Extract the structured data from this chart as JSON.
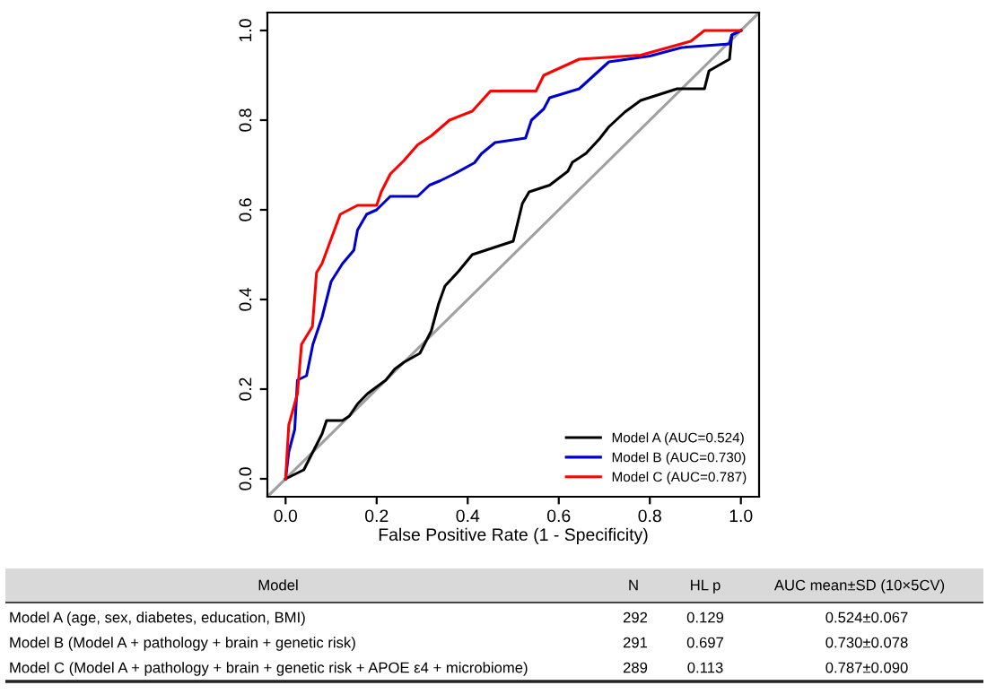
{
  "chart_data": [
    {
      "type": "line",
      "xlabel": "False Positive Rate (1 - Specificity)",
      "xlim": [
        -0.04,
        1.04
      ],
      "ylim": [
        -0.04,
        1.04
      ],
      "xticks": [
        {
          "value": 0,
          "label": "0.0"
        },
        0.2,
        0.4,
        0.6,
        0.8,
        {
          "value": 1,
          "label": "1.0"
        }
      ],
      "yticks": [
        {
          "value": 0,
          "label": "0.0"
        },
        0.2,
        0.4,
        0.6,
        0.8,
        {
          "value": 1,
          "label": "1.0"
        }
      ],
      "grid": false,
      "legend": "bottom right",
      "marker": "none",
      "line_style": "solid",
      "series": [
        {
          "color": "#a0a0a0",
          "x": [
            -0.04,
            1.04
          ],
          "values": [
            -0.04,
            1.04
          ]
        },
        {
          "name": "Model A (AUC=0.524)",
          "color": "#000000",
          "x": [
            0,
            0.02,
            0.04,
            0.06,
            0.08,
            0.09,
            0.125,
            0.14,
            0.158,
            0.18,
            0.22,
            0.24,
            0.26,
            0.295,
            0.32,
            0.336,
            0.35,
            0.38,
            0.41,
            0.5,
            0.52,
            0.535,
            0.58,
            0.62,
            0.63,
            0.66,
            0.69,
            0.71,
            0.745,
            0.78,
            0.82,
            0.86,
            0.92,
            0.93,
            0.975,
            0.98,
            1
          ],
          "values": [
            0,
            0.01,
            0.02,
            0.06,
            0.1,
            0.13,
            0.13,
            0.14,
            0.167,
            0.19,
            0.22,
            0.245,
            0.26,
            0.28,
            0.33,
            0.39,
            0.43,
            0.463,
            0.5,
            0.53,
            0.614,
            0.64,
            0.655,
            0.686,
            0.706,
            0.726,
            0.759,
            0.785,
            0.818,
            0.844,
            0.857,
            0.87,
            0.87,
            0.91,
            0.936,
            0.99,
            1
          ]
        },
        {
          "name": "Model B (AUC=0.730)",
          "color": "#0000cc",
          "x": [
            0,
            0.007,
            0.02,
            0.026,
            0.046,
            0.06,
            0.08,
            0.1,
            0.125,
            0.15,
            0.158,
            0.178,
            0.2,
            0.23,
            0.29,
            0.316,
            0.34,
            0.37,
            0.415,
            0.43,
            0.46,
            0.527,
            0.54,
            0.567,
            0.58,
            0.645,
            0.71,
            0.8,
            0.87,
            0.975,
            0.98,
            1
          ],
          "values": [
            0,
            0.06,
            0.11,
            0.22,
            0.23,
            0.3,
            0.36,
            0.44,
            0.48,
            0.51,
            0.555,
            0.59,
            0.6,
            0.63,
            0.63,
            0.655,
            0.665,
            0.68,
            0.705,
            0.725,
            0.75,
            0.76,
            0.8,
            0.825,
            0.85,
            0.87,
            0.93,
            0.943,
            0.962,
            0.97,
            0.99,
            1
          ]
        },
        {
          "name": "Model C (AUC=0.787)",
          "color": "#ff0000",
          "x": [
            0,
            0.007,
            0.026,
            0.035,
            0.059,
            0.068,
            0.08,
            0.1,
            0.12,
            0.158,
            0.2,
            0.21,
            0.23,
            0.26,
            0.29,
            0.32,
            0.36,
            0.41,
            0.45,
            0.55,
            0.567,
            0.645,
            0.78,
            0.89,
            0.92,
            1
          ],
          "values": [
            0,
            0.12,
            0.19,
            0.3,
            0.34,
            0.46,
            0.48,
            0.535,
            0.59,
            0.61,
            0.61,
            0.64,
            0.68,
            0.71,
            0.745,
            0.765,
            0.8,
            0.82,
            0.865,
            0.865,
            0.9,
            0.936,
            0.945,
            0.976,
            1,
            1
          ]
        }
      ]
    },
    {
      "type": "other",
      "categories": [
        "Model",
        "N",
        "HL p",
        "AUC mean±SD (10×5CV)"
      ],
      "cell_labels": [
        [
          "Model A (age, sex, diabetes, education, BMI)",
          "292",
          "0.129",
          "0.524±0.067"
        ],
        [
          "Model B (Model A + pathology + brain + genetic risk)",
          "291",
          "0.697",
          "0.730±0.078"
        ],
        [
          "Model C (Model A + pathology + brain + genetic risk + APOE ε4 + microbiome)",
          "289",
          "0.113",
          "0.787±0.090"
        ]
      ]
    }
  ]
}
